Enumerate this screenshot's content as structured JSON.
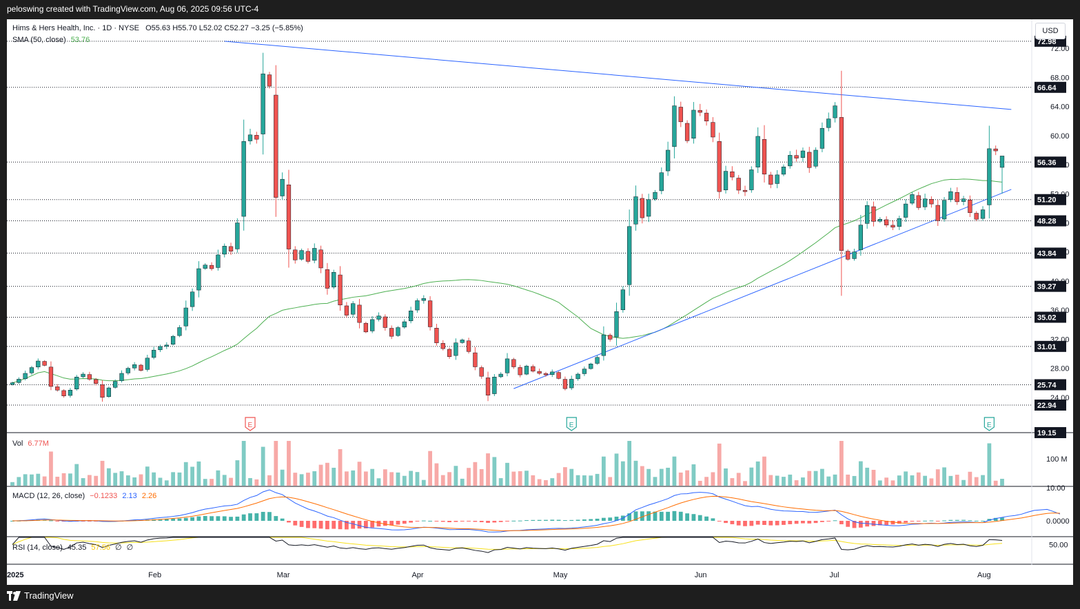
{
  "header": {
    "credit": "peloswing created with TradingView.com, Aug 06, 2025 09:56 UTC-4"
  },
  "footer": {
    "brand": "TradingView"
  },
  "currency_button": "USD",
  "legend": {
    "symbol_name": "Hims & Hers Health, Inc. · 1D · NYSE",
    "ohlc": "O55.63  H55.70  L52.02  C52.27  −3.25 (−5.85%)",
    "sma_label": "SMA (50, close)",
    "sma_value": "53.76",
    "vol_label": "Vol",
    "vol_value": "6.77M",
    "macd_label": "MACD (12, 26, close)",
    "macd_hist": "−0.1233",
    "macd_line": "2.13",
    "macd_signal": "2.26",
    "rsi_label": "RSI (14, close)",
    "rsi_value": "45.35",
    "rsi_ma": "57.56",
    "rsi_extra1": "∅",
    "rsi_extra2": "∅"
  },
  "colors": {
    "up": "#26a69a",
    "down": "#ef5350",
    "sma": "#4caf50",
    "macd": "#2962ff",
    "signal": "#ff6d00",
    "rsi": "#131722",
    "rsi_ma": "#f7e01a",
    "trend": "#2962ff",
    "price_box": "#131722"
  },
  "chart_data": {
    "type": "candlestick",
    "ylim": [
      19.15,
      76
    ],
    "price_scale_ticks": [
      24,
      28,
      32,
      36,
      40,
      44,
      48,
      52,
      56,
      60,
      64,
      68,
      72
    ],
    "horizontal_levels": [
      72.98,
      66.64,
      56.36,
      51.2,
      48.28,
      43.84,
      39.27,
      35.02,
      31.01,
      25.74,
      22.94,
      19.15
    ],
    "x_labels": [
      "2025",
      "Feb",
      "Mar",
      "Apr",
      "May",
      "Jun",
      "Jul",
      "Aug"
    ],
    "x_label_dates": [
      "2025-01-02",
      "2025-02-03",
      "2025-03-03",
      "2025-04-01",
      "2025-05-01",
      "2025-06-02",
      "2025-07-01",
      "2025-08-01"
    ],
    "last_date": "2025-08-06",
    "ohlc_closes": [
      26.0,
      26.5,
      27.3,
      28.1,
      29.0,
      28.4,
      25.5,
      25.0,
      24.2,
      25.0,
      26.8,
      27.2,
      26.5,
      25.9,
      24.0,
      25.3,
      26.2,
      27.3,
      28.0,
      28.5,
      27.7,
      29.4,
      30.5,
      31.0,
      31.2,
      32.4,
      33.6,
      36.3,
      38.5,
      41.7,
      42.2,
      41.7,
      43.6,
      44.8,
      44.1,
      48.0,
      59.2,
      60.1,
      59.5,
      68.5,
      66.8,
      51.5,
      54.0,
      44.4,
      42.9,
      44.2,
      42.7,
      44.5,
      41.8,
      39.0,
      41.2,
      36.7,
      35.3,
      36.9,
      34.3,
      33.0,
      34.7,
      35.2,
      33.6,
      32.4,
      33.6,
      34.4,
      35.9,
      37.3,
      37.6,
      33.7,
      31.5,
      30.7,
      29.6,
      31.5,
      31.9,
      30.3,
      28.2,
      26.9,
      24.3,
      26.8,
      27.2,
      29.3,
      28.2,
      27.1,
      28.3,
      27.6,
      27.3,
      27.1,
      27.5,
      26.6,
      25.2,
      26.5,
      27.2,
      27.9,
      28.6,
      29.5,
      32.6,
      32.0,
      35.8,
      38.8,
      47.5,
      51.6,
      48.7,
      51.2,
      52.2,
      54.9,
      58.0,
      64.1,
      61.9,
      59.3,
      63.5,
      63.2,
      62.0,
      59.8,
      52.3,
      55.1,
      54.3,
      52.5,
      52.3,
      55.3,
      59.9,
      54.7,
      53.3,
      54.6,
      55.7,
      57.3,
      56.9,
      57.9,
      55.6,
      58.0,
      61.0,
      62.3,
      64.1,
      44.2,
      43.0,
      44.0,
      47.7,
      50.4,
      48.2,
      48.5,
      47.7,
      47.4,
      48.6,
      50.6,
      51.9,
      50.1,
      51.3,
      50.6,
      48.3,
      51.1,
      52.3,
      50.9,
      51.3,
      49.4,
      48.5,
      49.8,
      58.2,
      57.9,
      57.2,
      58.4,
      57.8,
      60.7,
      65.1,
      65.8,
      63.1,
      63.8,
      54.9,
      52.27
    ],
    "sma_period": 50,
    "trendlines": [
      {
        "from": [
          "2025-02-18",
          72.98
        ],
        "to": [
          "2025-08-08",
          63.6
        ]
      },
      {
        "from": [
          "2025-04-22",
          25.2
        ],
        "to": [
          "2025-08-08",
          52.6
        ]
      }
    ],
    "earnings_markers": [
      "2025-02-24",
      "2025-05-05",
      "2025-08-04"
    ],
    "volume_ticks": [
      "100 M"
    ],
    "volume_last": 6.77,
    "macd_ticks": [
      "10.00",
      "0.0000"
    ],
    "rsi_ticks": [
      "50.00"
    ]
  }
}
